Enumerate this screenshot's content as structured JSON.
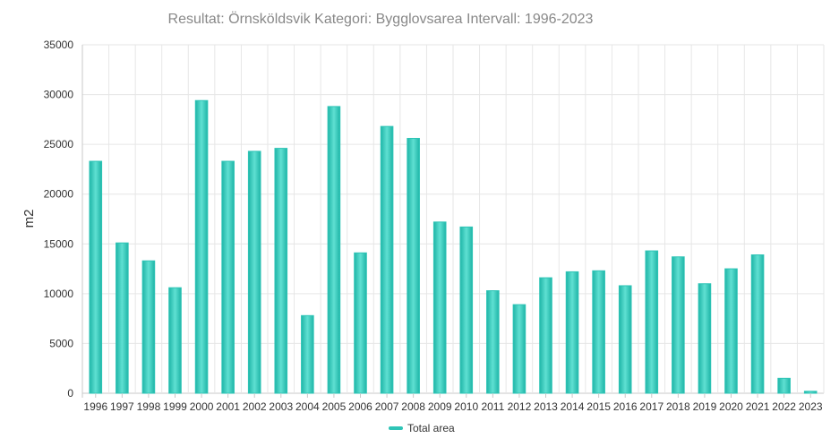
{
  "chart_data": {
    "type": "bar",
    "title": "Resultat: Örnsköldsvik Kategori: Bygglovsarea Intervall: 1996-2023",
    "ylabel": "m2",
    "xlabel": "",
    "ylim": [
      0,
      35000
    ],
    "yticks": [
      0,
      5000,
      10000,
      15000,
      20000,
      25000,
      30000,
      35000
    ],
    "grid": true,
    "legend_position": "bottom",
    "categories": [
      "1996",
      "1997",
      "1998",
      "1999",
      "2000",
      "2001",
      "2002",
      "2003",
      "2004",
      "2005",
      "2006",
      "2007",
      "2008",
      "2009",
      "2010",
      "2011",
      "2012",
      "2013",
      "2014",
      "2015",
      "2016",
      "2017",
      "2018",
      "2019",
      "2020",
      "2021",
      "2022",
      "2023"
    ],
    "series": [
      {
        "name": "Total area",
        "color": "#2ec4b6",
        "values": [
          23300,
          15100,
          13300,
          10600,
          29400,
          23300,
          24300,
          24600,
          7800,
          28800,
          14100,
          26800,
          25600,
          17200,
          16700,
          10300,
          8900,
          11600,
          12200,
          12300,
          10800,
          14300,
          13700,
          11000,
          12500,
          13900,
          1500,
          200
        ]
      }
    ]
  }
}
